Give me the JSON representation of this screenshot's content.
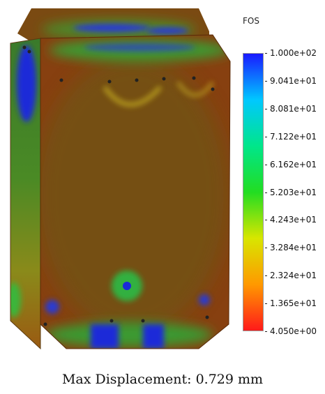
{
  "legend": {
    "title": "FOS",
    "colors": {
      "max": "#1a1aff",
      "high": "#00c8ff",
      "mid_high": "#00e68a",
      "mid": "#22dd22",
      "mid_low": "#d8e600",
      "low": "#ff9900",
      "min": "#ff1a1a"
    },
    "ticks": [
      "1.000e+02",
      "9.041e+01",
      "8.081e+01",
      "7.122e+01",
      "6.162e+01",
      "5.203e+01",
      "4.243e+01",
      "3.284e+01",
      "2.324e+01",
      "1.365e+01",
      "4.050e+00"
    ]
  },
  "caption": "Max Displacement: 0.729 mm",
  "model": {
    "base_color": "#8c3d0a",
    "hot_color": "#1a1aff",
    "warm_color": "#3ab53a"
  }
}
